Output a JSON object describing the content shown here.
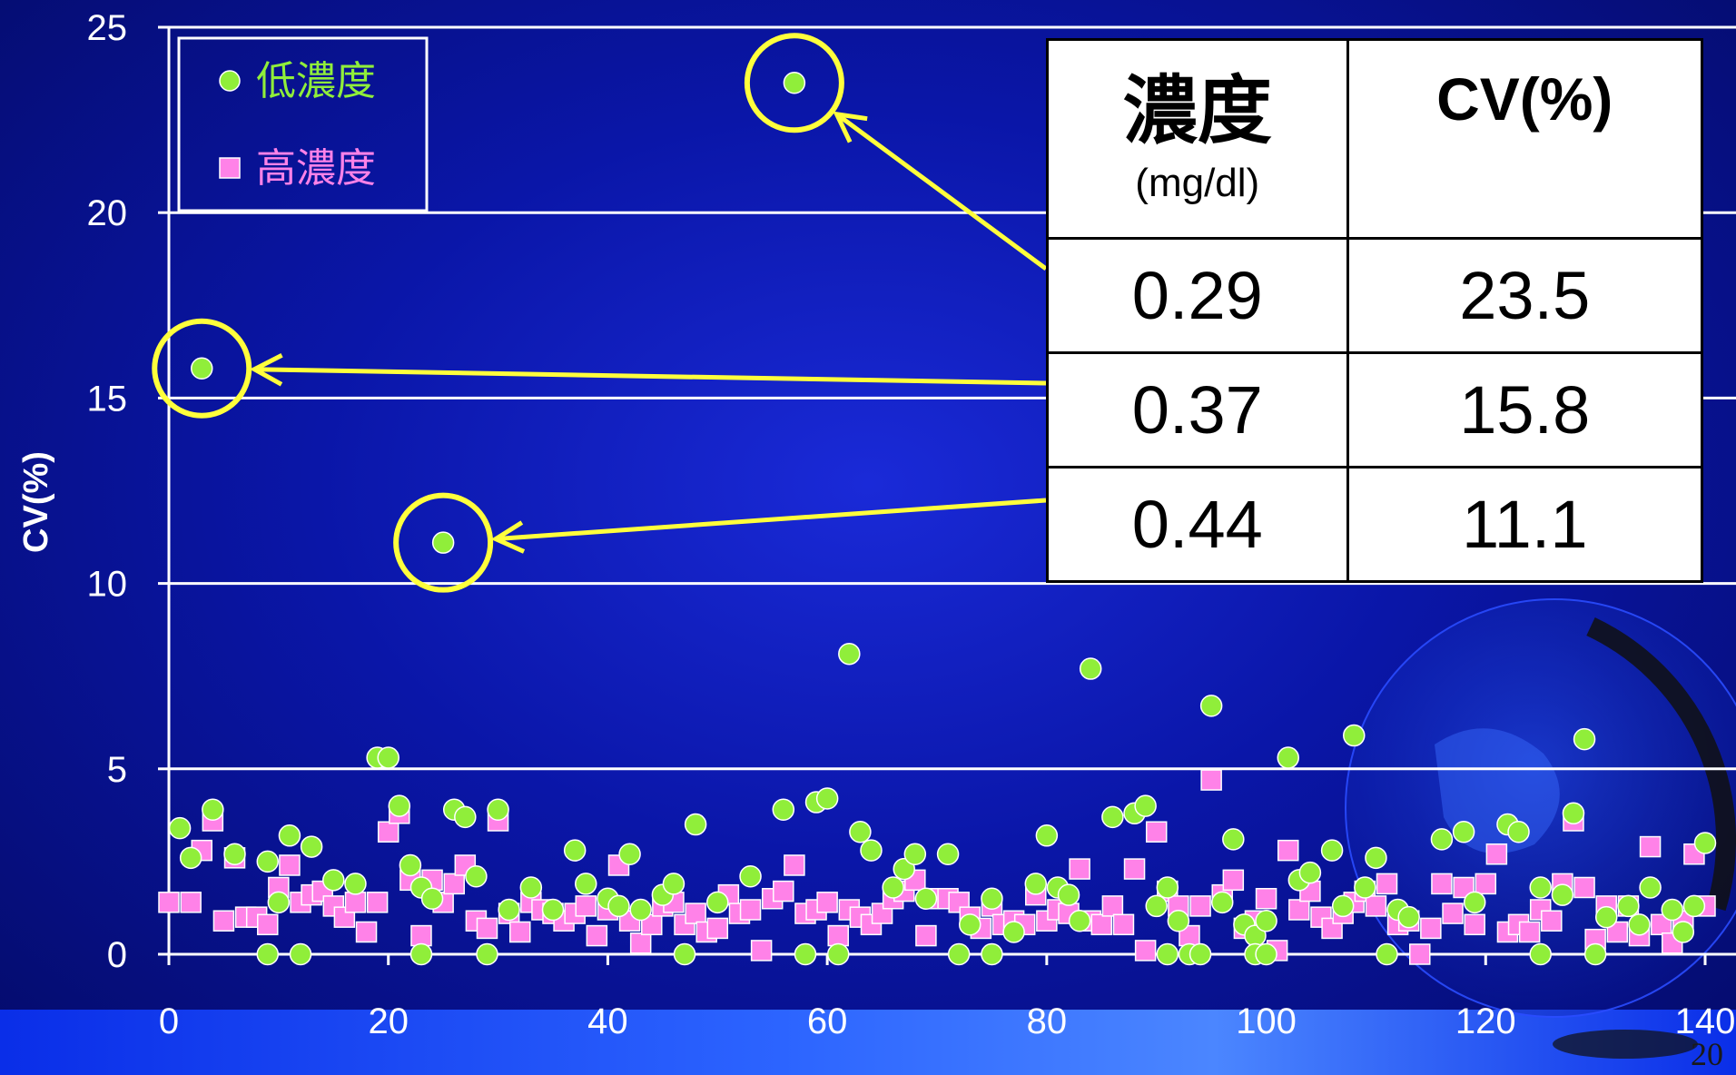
{
  "chart_data": {
    "type": "scatter",
    "ylabel": "CV(%)",
    "xlabel": "",
    "xlim": [
      0,
      140
    ],
    "ylim": [
      0,
      25
    ],
    "x_ticks": [
      "0",
      "20",
      "40",
      "60",
      "80",
      "100",
      "120",
      "140"
    ],
    "y_ticks": [
      "0",
      "5",
      "10",
      "15",
      "20",
      "25"
    ],
    "grid": "horizontal",
    "legend_position": "top-left",
    "series": [
      {
        "name": "低濃度",
        "marker": "circle",
        "color": "#90ee3a",
        "points": [
          [
            1,
            3.4
          ],
          [
            2,
            2.6
          ],
          [
            4,
            3.9
          ],
          [
            6,
            2.7
          ],
          [
            9,
            2.5
          ],
          [
            10,
            1.4
          ],
          [
            11,
            3.2
          ],
          [
            13,
            2.9
          ],
          [
            15,
            2.0
          ],
          [
            17,
            1.9
          ],
          [
            19,
            5.3
          ],
          [
            20,
            5.3
          ],
          [
            21,
            4.0
          ],
          [
            22,
            2.4
          ],
          [
            23,
            1.8
          ],
          [
            24,
            1.5
          ],
          [
            26,
            3.9
          ],
          [
            27,
            3.7
          ],
          [
            28,
            2.1
          ],
          [
            30,
            3.9
          ],
          [
            31,
            1.2
          ],
          [
            33,
            1.8
          ],
          [
            35,
            1.2
          ],
          [
            37,
            2.8
          ],
          [
            38,
            1.9
          ],
          [
            40,
            1.5
          ],
          [
            41,
            1.3
          ],
          [
            42,
            2.7
          ],
          [
            43,
            1.2
          ],
          [
            45,
            1.6
          ],
          [
            46,
            1.9
          ],
          [
            48,
            3.5
          ],
          [
            50,
            1.4
          ],
          [
            53,
            2.1
          ],
          [
            56,
            3.9
          ],
          [
            59,
            4.1
          ],
          [
            60,
            4.2
          ],
          [
            62,
            8.1
          ],
          [
            63,
            3.3
          ],
          [
            64,
            2.8
          ],
          [
            66,
            1.8
          ],
          [
            67,
            2.3
          ],
          [
            68,
            2.7
          ],
          [
            69,
            1.5
          ],
          [
            71,
            2.7
          ],
          [
            73,
            0.8
          ],
          [
            75,
            1.5
          ],
          [
            77,
            0.6
          ],
          [
            79,
            1.9
          ],
          [
            80,
            3.2
          ],
          [
            81,
            1.8
          ],
          [
            82,
            1.6
          ],
          [
            83,
            0.9
          ],
          [
            84,
            7.7
          ],
          [
            86,
            3.7
          ],
          [
            88,
            3.8
          ],
          [
            89,
            4.0
          ],
          [
            90,
            1.3
          ],
          [
            91,
            1.8
          ],
          [
            92,
            0.9
          ],
          [
            95,
            6.7
          ],
          [
            96,
            1.4
          ],
          [
            97,
            3.1
          ],
          [
            98,
            0.8
          ],
          [
            99,
            0.5
          ],
          [
            100,
            0.9
          ],
          [
            102,
            5.3
          ],
          [
            103,
            2.0
          ],
          [
            104,
            2.2
          ],
          [
            106,
            2.8
          ],
          [
            107,
            1.3
          ],
          [
            108,
            5.9
          ],
          [
            109,
            1.8
          ],
          [
            110,
            2.6
          ],
          [
            112,
            1.2
          ],
          [
            113,
            1.0
          ],
          [
            116,
            3.1
          ],
          [
            118,
            3.3
          ],
          [
            119,
            1.4
          ],
          [
            122,
            3.5
          ],
          [
            123,
            3.3
          ],
          [
            125,
            1.8
          ],
          [
            127,
            1.6
          ],
          [
            128,
            3.8
          ],
          [
            129,
            5.8
          ],
          [
            131,
            1.0
          ],
          [
            133,
            1.3
          ],
          [
            134,
            0.8
          ],
          [
            135,
            1.8
          ],
          [
            137,
            1.2
          ],
          [
            138,
            0.6
          ],
          [
            139,
            1.3
          ],
          [
            140,
            3.0
          ],
          [
            3,
            15.8
          ],
          [
            25,
            11.1
          ],
          [
            57,
            23.5
          ],
          [
            9,
            0
          ],
          [
            12,
            0
          ],
          [
            23,
            0
          ],
          [
            29,
            0
          ],
          [
            47,
            0
          ],
          [
            58,
            0
          ],
          [
            61,
            0
          ],
          [
            72,
            0
          ],
          [
            75,
            0
          ],
          [
            91,
            0
          ],
          [
            93,
            0
          ],
          [
            94,
            0
          ],
          [
            99,
            0
          ],
          [
            100,
            0
          ],
          [
            111,
            0
          ],
          [
            125,
            0
          ],
          [
            130,
            0
          ]
        ]
      },
      {
        "name": "高濃度",
        "marker": "square",
        "color": "#ff82e8",
        "points": [
          [
            0,
            1.4
          ],
          [
            2,
            1.4
          ],
          [
            3,
            2.8
          ],
          [
            4,
            3.6
          ],
          [
            5,
            0.9
          ],
          [
            6,
            2.6
          ],
          [
            7,
            1.0
          ],
          [
            8,
            1.0
          ],
          [
            9,
            0.8
          ],
          [
            10,
            1.8
          ],
          [
            11,
            2.4
          ],
          [
            12,
            1.4
          ],
          [
            13,
            1.6
          ],
          [
            14,
            1.7
          ],
          [
            15,
            1.3
          ],
          [
            16,
            1.0
          ],
          [
            17,
            1.4
          ],
          [
            18,
            0.6
          ],
          [
            19,
            1.4
          ],
          [
            20,
            3.3
          ],
          [
            21,
            3.8
          ],
          [
            22,
            2.0
          ],
          [
            23,
            0.5
          ],
          [
            24,
            2.0
          ],
          [
            25,
            1.4
          ],
          [
            26,
            1.9
          ],
          [
            27,
            2.4
          ],
          [
            28,
            0.9
          ],
          [
            29,
            0.7
          ],
          [
            30,
            3.6
          ],
          [
            31,
            1.1
          ],
          [
            32,
            0.6
          ],
          [
            33,
            1.4
          ],
          [
            34,
            1.2
          ],
          [
            35,
            1.1
          ],
          [
            36,
            0.9
          ],
          [
            37,
            1.1
          ],
          [
            38,
            1.3
          ],
          [
            39,
            0.5
          ],
          [
            40,
            1.2
          ],
          [
            41,
            2.4
          ],
          [
            42,
            0.9
          ],
          [
            43,
            0.3
          ],
          [
            44,
            0.8
          ],
          [
            45,
            1.3
          ],
          [
            46,
            1.4
          ],
          [
            47,
            0.8
          ],
          [
            48,
            1.1
          ],
          [
            49,
            0.6
          ],
          [
            50,
            0.7
          ],
          [
            51,
            1.6
          ],
          [
            52,
            1.1
          ],
          [
            53,
            1.2
          ],
          [
            54,
            0.1
          ],
          [
            55,
            1.5
          ],
          [
            56,
            1.7
          ],
          [
            57,
            2.4
          ],
          [
            58,
            1.1
          ],
          [
            59,
            1.2
          ],
          [
            60,
            1.4
          ],
          [
            61,
            0.5
          ],
          [
            62,
            1.2
          ],
          [
            63,
            1.0
          ],
          [
            64,
            0.8
          ],
          [
            65,
            1.1
          ],
          [
            66,
            1.5
          ],
          [
            67,
            1.7
          ],
          [
            68,
            2.0
          ],
          [
            69,
            0.5
          ],
          [
            70,
            1.5
          ],
          [
            71,
            1.5
          ],
          [
            72,
            1.4
          ],
          [
            73,
            1.0
          ],
          [
            74,
            0.7
          ],
          [
            75,
            1.3
          ],
          [
            76,
            0.8
          ],
          [
            77,
            0.9
          ],
          [
            78,
            0.8
          ],
          [
            79,
            1.6
          ],
          [
            80,
            0.9
          ],
          [
            81,
            1.2
          ],
          [
            82,
            1.1
          ],
          [
            83,
            2.3
          ],
          [
            84,
            0.9
          ],
          [
            85,
            0.8
          ],
          [
            86,
            1.3
          ],
          [
            87,
            0.8
          ],
          [
            88,
            2.3
          ],
          [
            89,
            0.1
          ],
          [
            90,
            3.3
          ],
          [
            91,
            1.7
          ],
          [
            92,
            1.3
          ],
          [
            93,
            0.5
          ],
          [
            94,
            1.3
          ],
          [
            95,
            4.7
          ],
          [
            96,
            1.6
          ],
          [
            97,
            2.0
          ],
          [
            98,
            0.7
          ],
          [
            99,
            0.9
          ],
          [
            100,
            1.5
          ],
          [
            101,
            0.1
          ],
          [
            102,
            2.8
          ],
          [
            103,
            1.2
          ],
          [
            104,
            1.7
          ],
          [
            105,
            1.0
          ],
          [
            106,
            0.7
          ],
          [
            107,
            1.1
          ],
          [
            108,
            1.4
          ],
          [
            109,
            1.7
          ],
          [
            110,
            1.3
          ],
          [
            111,
            1.9
          ],
          [
            112,
            0.8
          ],
          [
            113,
            0.9
          ],
          [
            114,
            0.0
          ],
          [
            115,
            0.7
          ],
          [
            116,
            1.9
          ],
          [
            117,
            1.1
          ],
          [
            118,
            1.8
          ],
          [
            119,
            0.8
          ],
          [
            120,
            1.9
          ],
          [
            121,
            2.7
          ],
          [
            122,
            0.6
          ],
          [
            123,
            0.8
          ],
          [
            124,
            0.6
          ],
          [
            125,
            1.2
          ],
          [
            126,
            0.9
          ],
          [
            127,
            1.9
          ],
          [
            128,
            3.6
          ],
          [
            129,
            1.8
          ],
          [
            130,
            0.4
          ],
          [
            131,
            1.3
          ],
          [
            132,
            0.6
          ],
          [
            133,
            1.3
          ],
          [
            134,
            0.5
          ],
          [
            135,
            2.9
          ],
          [
            136,
            0.8
          ],
          [
            137,
            0.3
          ],
          [
            138,
            0.9
          ],
          [
            139,
            2.7
          ],
          [
            140,
            1.3
          ]
        ]
      }
    ],
    "highlighted_points": [
      [
        57,
        23.5
      ],
      [
        3,
        15.8
      ],
      [
        25,
        11.1
      ]
    ],
    "annotation_color": "#ffff3c"
  },
  "legend": {
    "items": [
      "低濃度",
      "高濃度"
    ]
  },
  "table": {
    "header_col1_main": "濃度",
    "header_col1_sub": "(mg/dl)",
    "header_col2": "CV(%)",
    "rows": [
      {
        "concentration": "0.29",
        "cv": "23.5"
      },
      {
        "concentration": "0.37",
        "cv": "15.8"
      },
      {
        "concentration": "0.44",
        "cv": "11.1"
      }
    ]
  },
  "page_number": "20"
}
